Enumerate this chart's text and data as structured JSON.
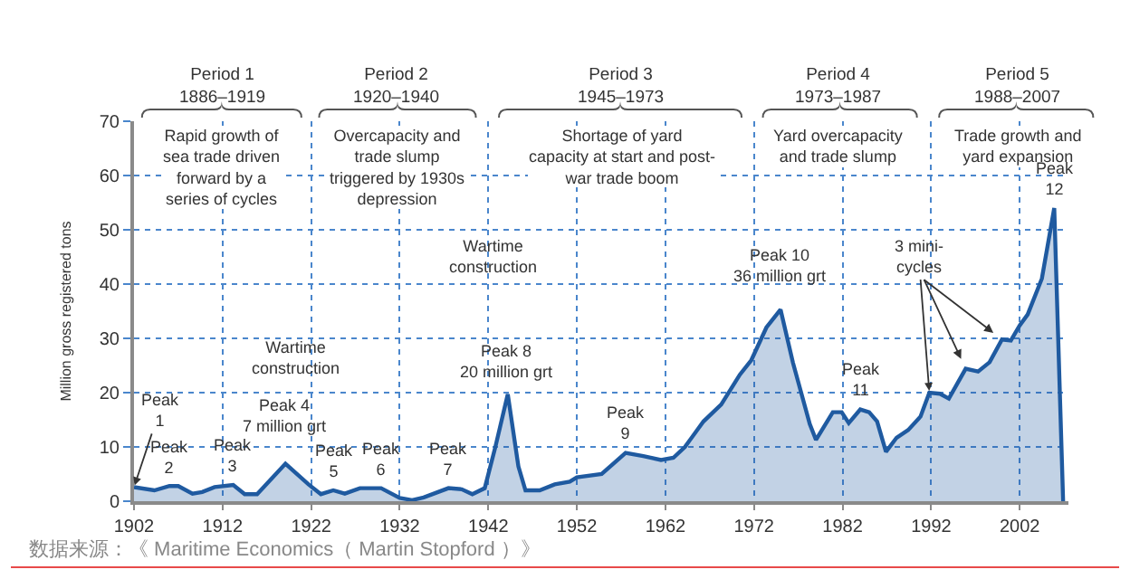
{
  "chart_data": {
    "type": "area",
    "ylabel": "Million gross registered tons",
    "x": [
      1902,
      1904.3,
      1906,
      1907,
      1908.6,
      1909.7,
      1911.1,
      1913.2,
      1914.5,
      1915.9,
      1919.1,
      1921.7,
      1923.1,
      1924.5,
      1925.8,
      1927.5,
      1929.9,
      1932,
      1933.4,
      1934.7,
      1937.5,
      1939,
      1940.2,
      1941.6,
      1942.8,
      1944.2,
      1945.4,
      1946.2,
      1947.8,
      1949.5,
      1951.2,
      1952,
      1954.8,
      1957.5,
      1959.5,
      1961.5,
      1962.9,
      1964.2,
      1966.3,
      1968.3,
      1970.4,
      1971.7,
      1973.4,
      1975,
      1976.4,
      1978.3,
      1979,
      1980.9,
      1981.9,
      1982.7,
      1984,
      1985,
      1985.9,
      1986.9,
      1988.1,
      1989.4,
      1990.8,
      1991.8,
      1993,
      1994,
      1995.9,
      1997.3,
      1998.6,
      2000,
      2001,
      2002,
      2002.9,
      2004.5,
      2005.9,
      2006.9
    ],
    "series": [
      {
        "color": "#1f5aa0",
        "values": [
          2.6,
          2.0,
          2.8,
          2.8,
          1.4,
          1.7,
          2.6,
          3.0,
          1.3,
          1.3,
          6.9,
          3.1,
          1.3,
          2.0,
          1.4,
          2.4,
          2.4,
          0.6,
          0.2,
          0.7,
          2.4,
          2.2,
          1.3,
          2.4,
          10,
          19.7,
          6.4,
          2.0,
          2.0,
          3.1,
          3.6,
          4.4,
          5,
          8.9,
          8.3,
          7.6,
          8,
          10,
          14.7,
          17.8,
          23.3,
          26,
          32,
          35.3,
          25.5,
          14.2,
          11.3,
          16.4,
          16.4,
          14.4,
          16.9,
          16.4,
          14.7,
          9.1,
          11.7,
          13.1,
          15.6,
          20,
          19.8,
          18.9,
          24.4,
          23.9,
          25.6,
          29.8,
          29.6,
          32.4,
          34.4,
          41,
          54,
          0
        ]
      }
    ],
    "xlim": [
      1902,
      2007.5
    ],
    "xticks": [
      1902,
      1912,
      1922,
      1932,
      1942,
      1952,
      1962,
      1972,
      1982,
      1992,
      2002
    ],
    "ylim": [
      0,
      70
    ],
    "yticks": [
      0,
      10,
      20,
      30,
      40,
      50,
      60,
      70
    ],
    "grid": true,
    "annotations": [
      "Period 1\n1886–1919",
      "Period 2\n1920–1940",
      "Period 3\n1945–1973",
      "Period 4\n1973–1987",
      "Period 5\n1988–2007",
      "Rapid growth of\nsea trade driven\nforward by a\nseries of cycles",
      "Overcapacity and\ntrade slump\ntriggered by 1930s\ndepression",
      "Shortage of yard\ncapacity at start and post-\nwar trade boom",
      "Yard overcapacity\nand trade slump",
      "Trade growth and\nyard expansion",
      "Wartime\nconstruction",
      "Wartime\nconstruction",
      {
        "text": "Peak\n1",
        "x": 1902,
        "y": 2.6
      },
      {
        "text": "Peak\n2",
        "x": 1906,
        "y": 2.8
      },
      {
        "text": "Peak\n3",
        "x": 1913.2,
        "y": 3.0
      },
      {
        "text": "Peak 4\n7 million grt",
        "x": 1919.1,
        "y": 6.9
      },
      {
        "text": "Peak\n5",
        "x": 1924.5,
        "y": 2.0
      },
      {
        "text": "Peak\n6",
        "x": 1929.9,
        "y": 2.4
      },
      {
        "text": "Peak\n7",
        "x": 1937.5,
        "y": 2.4
      },
      {
        "text": "Peak 8\n20 million grt",
        "x": 1944.2,
        "y": 19.7
      },
      {
        "text": "Peak\n9",
        "x": 1957.5,
        "y": 8.9
      },
      {
        "text": "Peak 10\n36 million grt",
        "x": 1975,
        "y": 35.3
      },
      {
        "text": "Peak\n11",
        "x": 1984,
        "y": 16.9
      },
      {
        "text": "Peak\n12",
        "x": 2005.9,
        "y": 54
      },
      {
        "text": "3 mini-\ncycles",
        "x": 1991.8,
        "y": 20
      },
      "数据来源：《 Maritime Economics（ Martin Stopford ）》"
    ]
  }
}
